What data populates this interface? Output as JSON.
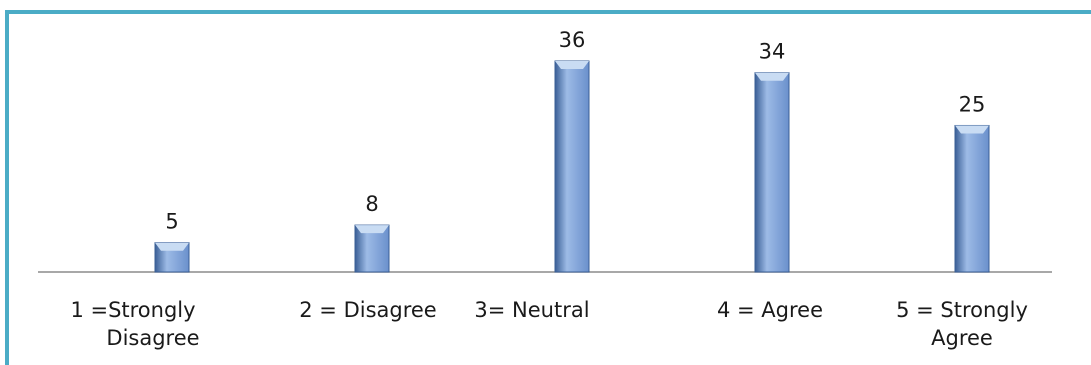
{
  "chart_data": {
    "type": "bar",
    "categories": [
      [
        "1  =Strongly",
        "Disagree"
      ],
      [
        "2 = Disagree"
      ],
      [
        "3= Neutral"
      ],
      [
        "4 = Agree"
      ],
      [
        "5 = Strongly",
        "Agree"
      ]
    ],
    "values": [
      5,
      8,
      36,
      34,
      25
    ],
    "data_labels": [
      "5",
      "8",
      "36",
      "34",
      "25"
    ],
    "ylim": [
      0,
      36
    ],
    "grid": false,
    "legend": "none"
  },
  "colors": {
    "frame_border": "#4bacc6",
    "bar_dark": "#3a5f96",
    "bar_mid": "#6a90cc",
    "bar_light": "#9dbbe6",
    "bar_cap": "#c9dcf3",
    "axis": "#8c8c8c"
  }
}
